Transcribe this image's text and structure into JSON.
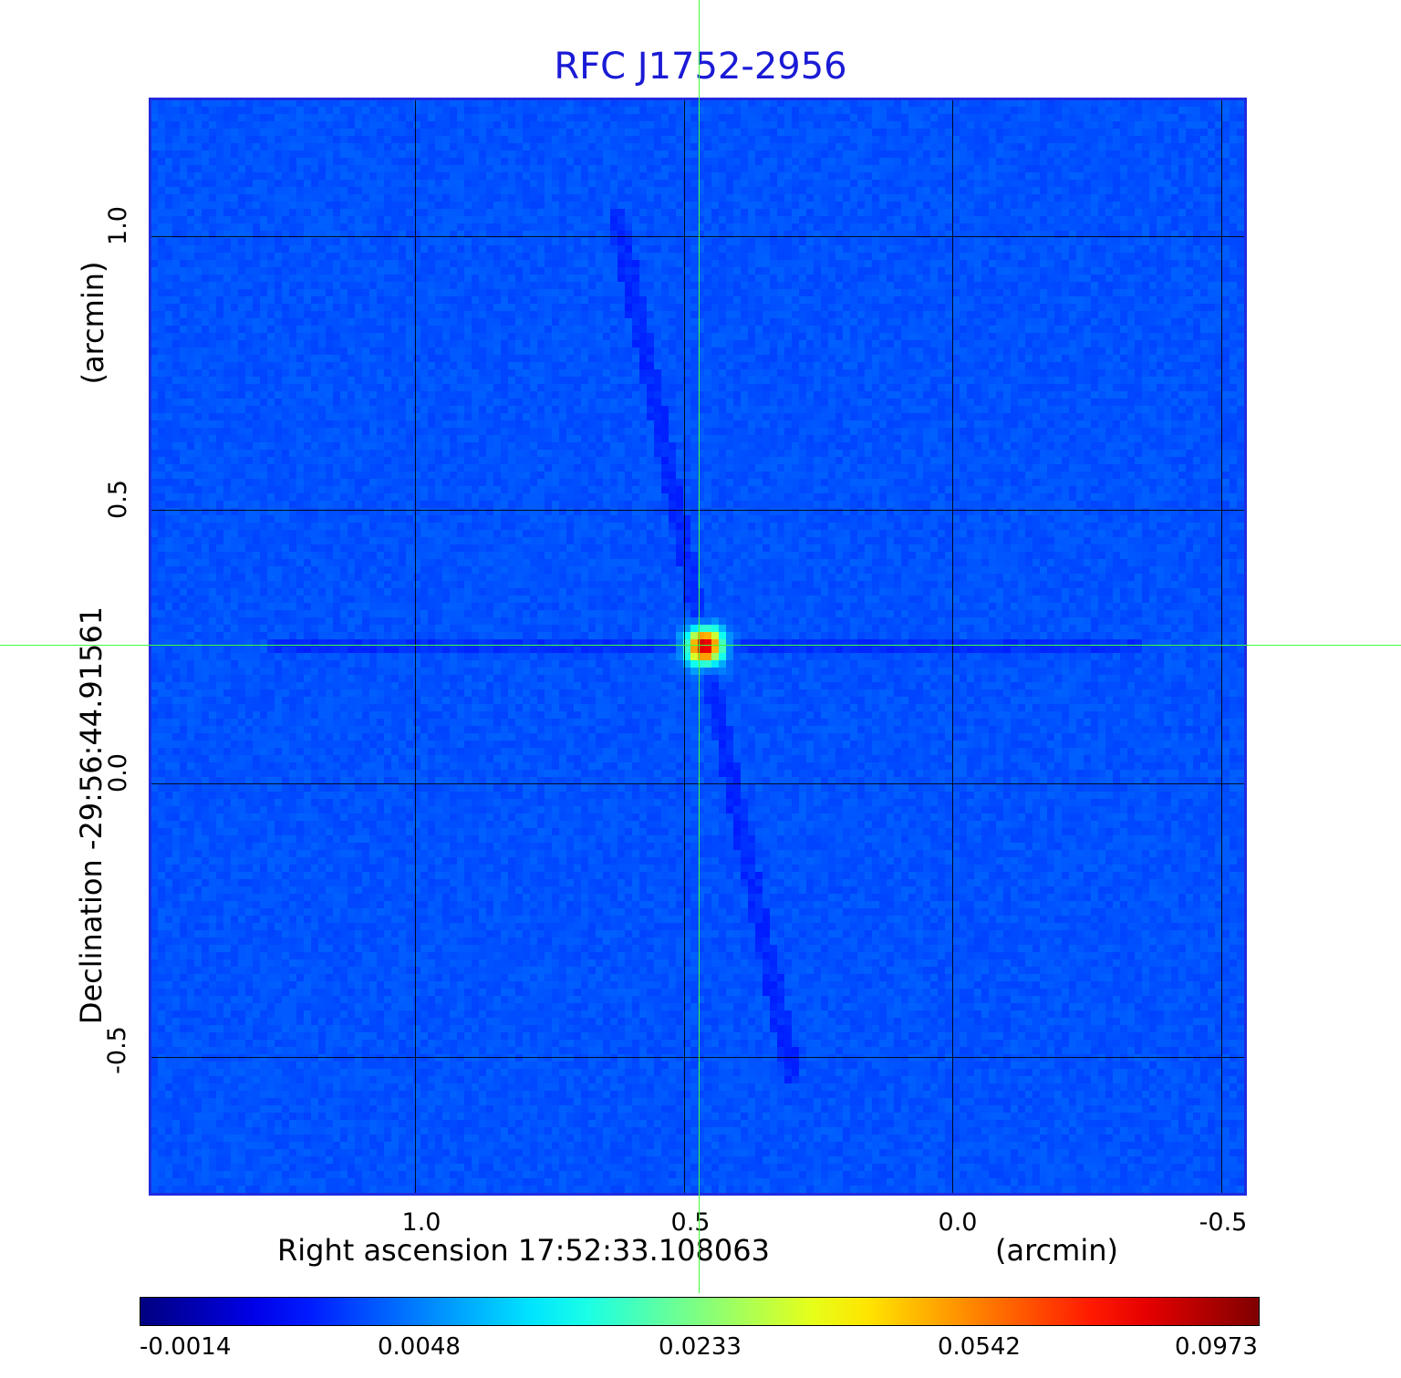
{
  "title": "RFC J1752-2956",
  "x_axis": {
    "label": "Right ascension  17:52:33.108063",
    "unit": "(arcmin)",
    "ticks": [
      "1.0",
      "0.5",
      "0.0",
      "-0.5"
    ]
  },
  "y_axis": {
    "label": "Declination  -29:56:44.91561",
    "unit": "(arcmin)",
    "ticks": [
      "1.0",
      "0.5",
      "0.0",
      "-0.5"
    ]
  },
  "colorbar": {
    "colormap": "jet",
    "ticks": [
      "-0.0014",
      "0.0048",
      "0.0233",
      "0.0542",
      "0.0973"
    ]
  },
  "colors": {
    "title": "#1a1ad6",
    "crosshair": "#3dff3d",
    "frame": "#1f2be0"
  }
}
